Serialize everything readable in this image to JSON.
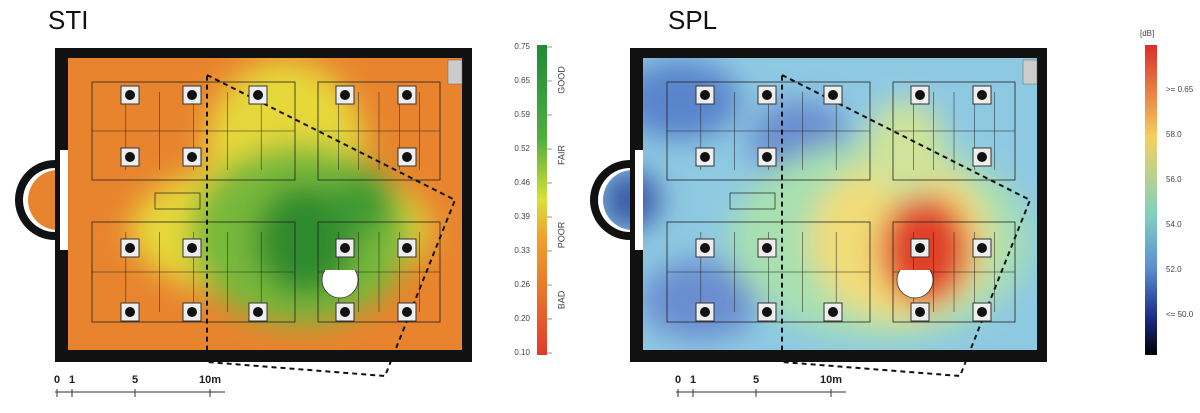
{
  "panels": [
    {
      "title": "STI",
      "colorbar": {
        "ticks": [
          "0.75",
          "0.65",
          "0.59",
          "0.52",
          "0.46",
          "0.39",
          "0.33",
          "0.26",
          "0.20",
          "0.10"
        ],
        "ratings": [
          "GOOD",
          "FAIR",
          "POOR",
          "BAD"
        ]
      },
      "scale": [
        "0",
        "1",
        "5",
        "10m"
      ]
    },
    {
      "title": "SPL",
      "colorbar": {
        "unit": "[dB]",
        "ticks": [
          ">= 0.65",
          "58.0",
          "56.0",
          "54.0",
          "52.0",
          "<= 50.0"
        ]
      },
      "scale": [
        "0",
        "1",
        "5",
        "10m"
      ]
    }
  ]
}
